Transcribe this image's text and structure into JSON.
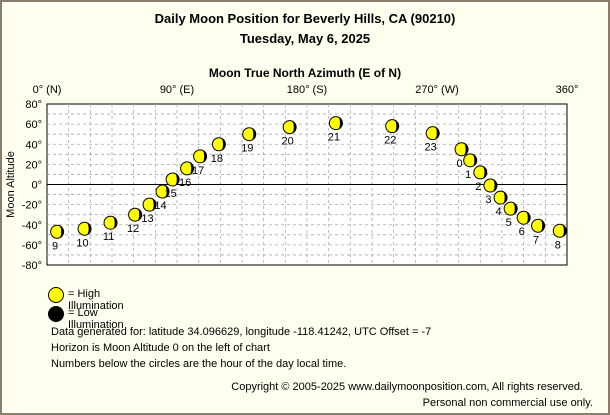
{
  "header": {
    "title": "Daily Moon Position for Beverly Hills, CA (90210)",
    "date": "Tuesday, May 6, 2025"
  },
  "legend": {
    "high_label": "= High Illumination",
    "low_label": "= Low Illumination",
    "high_color": "#FFFF00",
    "low_color": "#000000"
  },
  "info": {
    "line1": "Data generated for: latitude 34.096629, longitude -118.41242, UTC Offset = -7",
    "line2": "Horizon is Moon Altitude 0 on the left of chart",
    "line3": "Numbers below the circles are the hour of the day local time."
  },
  "footer": {
    "copyright": "Copyright © 2005-2025 www.dailymoonposition.com, All rights reserved.",
    "note": "Personal non commercial use only."
  },
  "chart_data": {
    "type": "scatter",
    "xlabel": "Moon True North Azimuth (E of N)",
    "ylabel": "Moon Altitude",
    "xlim": [
      0,
      360
    ],
    "ylim": [
      -80,
      80
    ],
    "x_ticks": [
      {
        "value": 0,
        "label": "0° (N)"
      },
      {
        "value": 90,
        "label": "90° (E)"
      },
      {
        "value": 180,
        "label": "180° (S)"
      },
      {
        "value": 270,
        "label": "270° (W)"
      },
      {
        "value": 360,
        "label": "360°"
      }
    ],
    "y_ticks": [
      {
        "value": 80,
        "label": "80°"
      },
      {
        "value": 60,
        "label": "60°"
      },
      {
        "value": 40,
        "label": "40°"
      },
      {
        "value": 20,
        "label": "20°"
      },
      {
        "value": 0,
        "label": "0°"
      },
      {
        "value": -20,
        "label": "-20°"
      },
      {
        "value": -40,
        "label": "-40°"
      },
      {
        "value": -60,
        "label": "-60°"
      },
      {
        "value": -80,
        "label": "-80°"
      }
    ],
    "grid": true,
    "horizon": 0,
    "points": [
      {
        "hour": "9",
        "az": 7,
        "alt": -47
      },
      {
        "hour": "10",
        "az": 26,
        "alt": -44
      },
      {
        "hour": "11",
        "az": 44,
        "alt": -38
      },
      {
        "hour": "12",
        "az": 61,
        "alt": -30
      },
      {
        "hour": "13",
        "az": 71,
        "alt": -20
      },
      {
        "hour": "14",
        "az": 80,
        "alt": -7
      },
      {
        "hour": "15",
        "az": 87,
        "alt": 5
      },
      {
        "hour": "16",
        "az": 97,
        "alt": 16
      },
      {
        "hour": "17",
        "az": 106,
        "alt": 28
      },
      {
        "hour": "18",
        "az": 119,
        "alt": 40
      },
      {
        "hour": "19",
        "az": 140,
        "alt": 50
      },
      {
        "hour": "20",
        "az": 168,
        "alt": 57
      },
      {
        "hour": "21",
        "az": 200,
        "alt": 61
      },
      {
        "hour": "22",
        "az": 239,
        "alt": 58
      },
      {
        "hour": "23",
        "az": 267,
        "alt": 51
      },
      {
        "hour": "0",
        "az": 287,
        "alt": 35
      },
      {
        "hour": "1",
        "az": 293,
        "alt": 24
      },
      {
        "hour": "2",
        "az": 300,
        "alt": 12
      },
      {
        "hour": "3",
        "az": 307,
        "alt": -1
      },
      {
        "hour": "4",
        "az": 314,
        "alt": -13
      },
      {
        "hour": "5",
        "az": 321,
        "alt": -24
      },
      {
        "hour": "6",
        "az": 330,
        "alt": -33
      },
      {
        "hour": "7",
        "az": 340,
        "alt": -41
      },
      {
        "hour": "8",
        "az": 355,
        "alt": -46
      }
    ]
  }
}
